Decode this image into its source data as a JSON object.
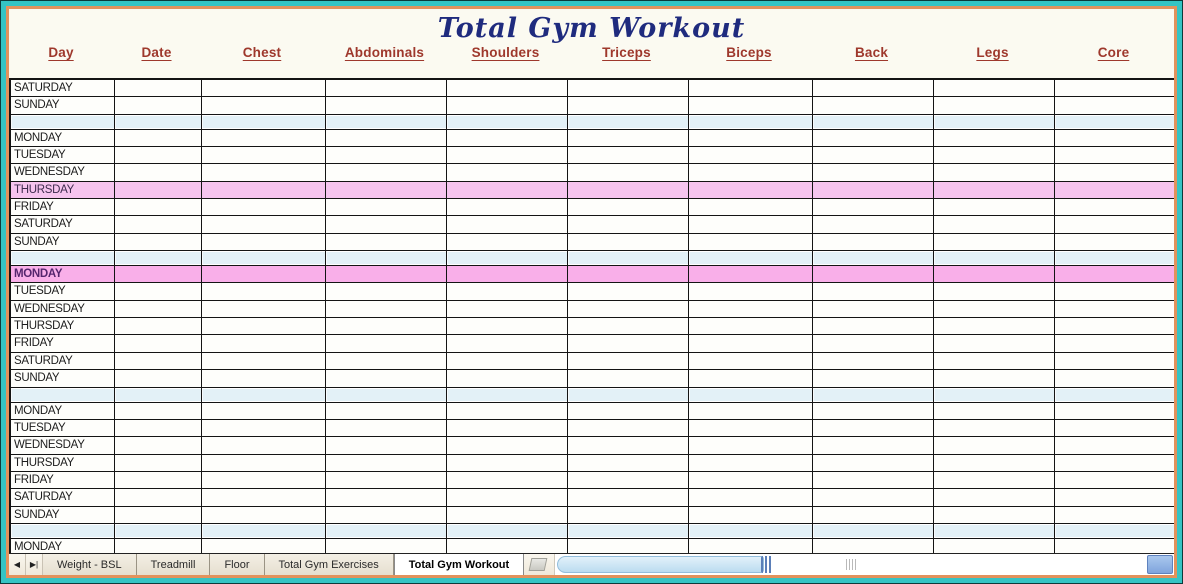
{
  "title": "Total Gym Workout",
  "table": {
    "columns": [
      "Day",
      "Date",
      "Chest",
      "Abdominals",
      "Shoulders",
      "Triceps",
      "Biceps",
      "Back",
      "Legs",
      "Core"
    ],
    "rows": [
      {
        "type": "day",
        "label": "SATURDAY"
      },
      {
        "type": "day",
        "label": "SUNDAY"
      },
      {
        "type": "separator",
        "label": ""
      },
      {
        "type": "day",
        "label": "MONDAY"
      },
      {
        "type": "day",
        "label": "TUESDAY"
      },
      {
        "type": "day",
        "label": "WEDNESDAY"
      },
      {
        "type": "day",
        "label": "THURSDAY",
        "highlight": "pink"
      },
      {
        "type": "day",
        "label": "FRIDAY"
      },
      {
        "type": "day",
        "label": "SATURDAY"
      },
      {
        "type": "day",
        "label": "SUNDAY"
      },
      {
        "type": "separator",
        "label": ""
      },
      {
        "type": "day",
        "label": "MONDAY",
        "highlight": "pink-bright"
      },
      {
        "type": "day",
        "label": "TUESDAY"
      },
      {
        "type": "day",
        "label": "WEDNESDAY"
      },
      {
        "type": "day",
        "label": "THURSDAY"
      },
      {
        "type": "day",
        "label": "FRIDAY"
      },
      {
        "type": "day",
        "label": "SATURDAY"
      },
      {
        "type": "day",
        "label": "SUNDAY"
      },
      {
        "type": "separator",
        "label": ""
      },
      {
        "type": "day",
        "label": "MONDAY"
      },
      {
        "type": "day",
        "label": "TUESDAY"
      },
      {
        "type": "day",
        "label": "WEDNESDAY"
      },
      {
        "type": "day",
        "label": "THURSDAY"
      },
      {
        "type": "day",
        "label": "FRIDAY"
      },
      {
        "type": "day",
        "label": "SATURDAY"
      },
      {
        "type": "day",
        "label": "SUNDAY"
      },
      {
        "type": "separator",
        "label": ""
      },
      {
        "type": "day",
        "label": "MONDAY"
      }
    ]
  },
  "tab_bar": {
    "nav_prev": "◀",
    "nav_last": "▶|",
    "tabs": [
      {
        "label": "Weight - BSL",
        "active": false
      },
      {
        "label": "Treadmill",
        "active": false
      },
      {
        "label": "Floor",
        "active": false
      },
      {
        "label": "Total Gym Exercises",
        "active": false
      },
      {
        "label": "Total Gym Workout",
        "active": true
      }
    ]
  },
  "colors": {
    "frame_teal": "#35C4C4",
    "frame_orange": "#E2925C",
    "title_text": "#1F2B7E",
    "header_text": "#9E382C",
    "separator_blue": "#E3F1F7",
    "highlight_pink": "#F6C4EE",
    "highlight_pink_bright": "#F9AFE9",
    "grid_line": "#141414",
    "scrollbar_blue": "#BBDCF0"
  }
}
